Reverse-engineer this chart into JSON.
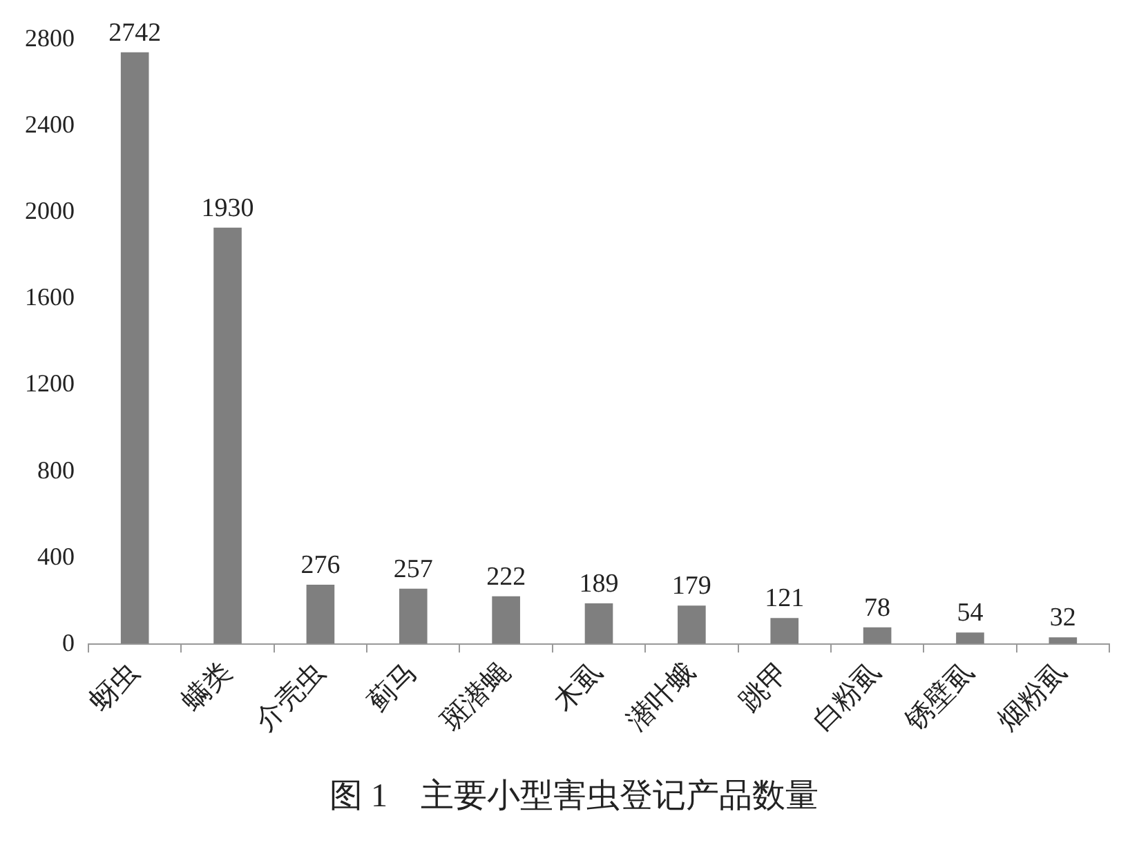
{
  "chart_data": {
    "type": "bar",
    "title": "图 1　主要小型害虫登记产品数量",
    "categories": [
      "蚜虫",
      "螨类",
      "介壳虫",
      "蓟马",
      "斑潜蝇",
      "木虱",
      "潜叶蛾",
      "跳甲",
      "白粉虱",
      "锈壁虱",
      "烟粉虱"
    ],
    "values": [
      2742,
      1930,
      276,
      257,
      222,
      189,
      179,
      121,
      78,
      54,
      32
    ],
    "color": "#7f7f7f",
    "ylim": [
      0,
      2800
    ],
    "yticks": [
      0,
      400,
      800,
      1200,
      1600,
      2000,
      2400,
      2800
    ],
    "grid": false,
    "data_labels": true,
    "legend": false
  }
}
